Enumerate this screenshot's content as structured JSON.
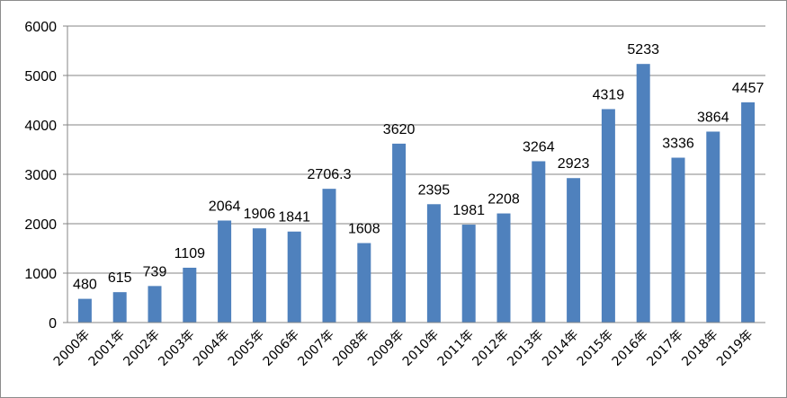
{
  "chart_data": {
    "type": "bar",
    "categories": [
      "2000年",
      "2001年",
      "2002年",
      "2003年",
      "2004年",
      "2005年",
      "2006年",
      "2007年",
      "2008年",
      "2009年",
      "2010年",
      "2011年",
      "2012年",
      "2013年",
      "2014年",
      "2015年",
      "2016年",
      "2017年",
      "2018年",
      "2019年"
    ],
    "values": [
      480,
      615,
      739,
      1109,
      2064,
      1906,
      1841,
      2706.3,
      1608,
      3620,
      2395,
      1981,
      2208,
      3264,
      2923,
      4319,
      5233,
      3336,
      3864,
      4457
    ],
    "data_labels": [
      "480",
      "615",
      "739",
      "1109",
      "2064",
      "1906",
      "1841",
      "2706.3",
      "1608",
      "3620",
      "2395",
      "1981",
      "2208",
      "3264",
      "2923",
      "4319",
      "5233",
      "3336",
      "3864",
      "4457"
    ],
    "ylim": [
      0,
      6000
    ],
    "yticks": [
      "0",
      "1000",
      "2000",
      "3000",
      "4000",
      "5000",
      "6000"
    ],
    "grid": true,
    "legend": "none",
    "colors": {
      "bar": "#4f81bd",
      "grid": "#868686",
      "axis": "#868686"
    }
  }
}
